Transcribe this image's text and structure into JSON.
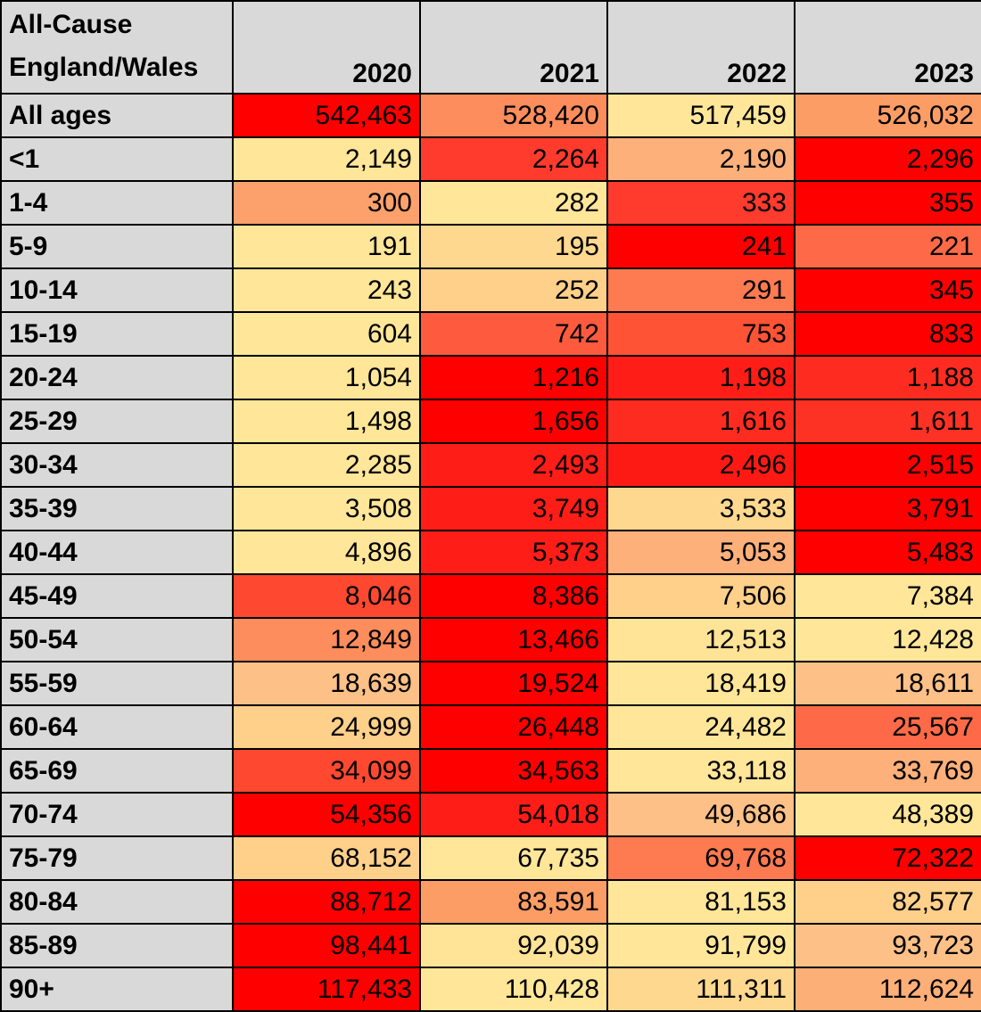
{
  "chart_data": {
    "type": "table",
    "corner_header": [
      "All-Cause",
      "England/Wales"
    ],
    "columns": [
      "2020",
      "2021",
      "2022",
      "2023"
    ],
    "rows": [
      {
        "label": "All ages",
        "values": [
          "542,463",
          "528,420",
          "517,459",
          "526,032"
        ],
        "colors": [
          "#ff0000",
          "#fd8d5c",
          "#ffe699",
          "#fd9d66"
        ]
      },
      {
        "label": "<1",
        "values": [
          "2,149",
          "2,264",
          "2,190",
          "2,296"
        ],
        "colors": [
          "#ffe699",
          "#fe3b2c",
          "#fdb07a",
          "#ff0000"
        ]
      },
      {
        "label": "1-4",
        "values": [
          "300",
          "282",
          "333",
          "355"
        ],
        "colors": [
          "#fda16c",
          "#ffe699",
          "#fe3b2c",
          "#ff0000"
        ]
      },
      {
        "label": "5-9",
        "values": [
          "191",
          "195",
          "241",
          "221"
        ],
        "colors": [
          "#ffe699",
          "#ffd88f",
          "#ff0000",
          "#fe6a47"
        ]
      },
      {
        "label": "10-14",
        "values": [
          "243",
          "252",
          "291",
          "345"
        ],
        "colors": [
          "#ffe699",
          "#ffd08a",
          "#fe7a51",
          "#ff0000"
        ]
      },
      {
        "label": "15-19",
        "values": [
          "604",
          "742",
          "753",
          "833"
        ],
        "colors": [
          "#ffe699",
          "#fe5b3e",
          "#fe5335",
          "#ff0000"
        ]
      },
      {
        "label": "20-24",
        "values": [
          "1,054",
          "1,216",
          "1,198",
          "1,188"
        ],
        "colors": [
          "#ffe699",
          "#ff0000",
          "#fe1d17",
          "#fe2c20"
        ]
      },
      {
        "label": "25-29",
        "values": [
          "1,498",
          "1,656",
          "1,616",
          "1,611"
        ],
        "colors": [
          "#ffe699",
          "#ff0000",
          "#fe2c20",
          "#fe3224"
        ]
      },
      {
        "label": "30-34",
        "values": [
          "2,285",
          "2,493",
          "2,496",
          "2,515"
        ],
        "colors": [
          "#ffe699",
          "#fe1d17",
          "#fe1a14",
          "#ff0000"
        ]
      },
      {
        "label": "35-39",
        "values": [
          "3,508",
          "3,749",
          "3,533",
          "3,791"
        ],
        "colors": [
          "#ffe699",
          "#fe1d17",
          "#ffd88f",
          "#ff0000"
        ]
      },
      {
        "label": "40-44",
        "values": [
          "4,896",
          "5,373",
          "5,053",
          "5,483"
        ],
        "colors": [
          "#ffe699",
          "#fe1d17",
          "#fdb07a",
          "#ff0000"
        ]
      },
      {
        "label": "45-49",
        "values": [
          "8,046",
          "8,386",
          "7,506",
          "7,384"
        ],
        "colors": [
          "#fe4830",
          "#ff0000",
          "#ffd08a",
          "#ffe699"
        ]
      },
      {
        "label": "50-54",
        "values": [
          "12,849",
          "13,466",
          "12,513",
          "12,428"
        ],
        "colors": [
          "#fd8d5c",
          "#ff0000",
          "#ffe396",
          "#ffe699"
        ]
      },
      {
        "label": "55-59",
        "values": [
          "18,639",
          "19,524",
          "18,419",
          "18,611"
        ],
        "colors": [
          "#fdc087",
          "#ff0000",
          "#ffe699",
          "#fdc087"
        ]
      },
      {
        "label": "60-64",
        "values": [
          "24,999",
          "26,448",
          "24,482",
          "25,567"
        ],
        "colors": [
          "#ffd08a",
          "#ff0000",
          "#ffe699",
          "#fe6a47"
        ]
      },
      {
        "label": "65-69",
        "values": [
          "34,099",
          "34,563",
          "33,118",
          "33,769"
        ],
        "colors": [
          "#fe4830",
          "#ff0000",
          "#ffe699",
          "#fdb07a"
        ]
      },
      {
        "label": "70-74",
        "values": [
          "54,356",
          "54,018",
          "49,686",
          "48,389"
        ],
        "colors": [
          "#ff0000",
          "#fe1d17",
          "#fdc087",
          "#ffe699"
        ]
      },
      {
        "label": "75-79",
        "values": [
          "68,152",
          "67,735",
          "69,768",
          "72,322"
        ],
        "colors": [
          "#ffd08a",
          "#ffe699",
          "#fe7a51",
          "#ff0000"
        ]
      },
      {
        "label": "80-84",
        "values": [
          "88,712",
          "83,591",
          "81,153",
          "82,577"
        ],
        "colors": [
          "#ff0000",
          "#fd9d66",
          "#ffe699",
          "#ffd08a"
        ]
      },
      {
        "label": "85-89",
        "values": [
          "98,441",
          "92,039",
          "91,799",
          "93,723"
        ],
        "colors": [
          "#ff0000",
          "#ffe396",
          "#ffe699",
          "#fdc087"
        ]
      },
      {
        "label": "90+",
        "values": [
          "117,433",
          "110,428",
          "111,311",
          "112,624"
        ],
        "colors": [
          "#ff0000",
          "#ffe699",
          "#ffd88f",
          "#fdaf78"
        ]
      }
    ]
  }
}
